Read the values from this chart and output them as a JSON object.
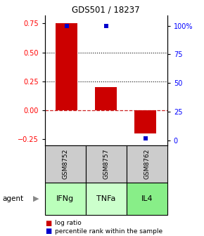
{
  "title": "GDS501 / 18237",
  "samples": [
    "GSM8752",
    "GSM8757",
    "GSM8762"
  ],
  "agents": [
    "IFNg",
    "TNFa",
    "IL4"
  ],
  "log_ratios": [
    0.75,
    0.2,
    -0.2
  ],
  "percentile_ranks": [
    100.0,
    100.0,
    2.0
  ],
  "left_ylim": [
    -0.3,
    0.82
  ],
  "right_ylim": [
    -4.0,
    109.0
  ],
  "left_yticks": [
    -0.25,
    0.0,
    0.25,
    0.5,
    0.75
  ],
  "right_yticks": [
    0,
    25,
    50,
    75,
    100
  ],
  "right_yticklabels": [
    "0",
    "25",
    "50",
    "75",
    "100%"
  ],
  "dotted_lines": [
    0.25,
    0.5
  ],
  "zero_line": 0.0,
  "bar_color": "#cc0000",
  "percentile_color": "#0000cc",
  "bar_width": 0.55,
  "percentile_marker_size": 5,
  "sample_bg_color": "#cccccc",
  "agent_colors": {
    "IFNg": "#bbffbb",
    "TNFa": "#ccffcc",
    "IL4": "#88ee88"
  },
  "legend_bar_label": "log ratio",
  "legend_pct_label": "percentile rank within the sample",
  "agent_label": "agent"
}
